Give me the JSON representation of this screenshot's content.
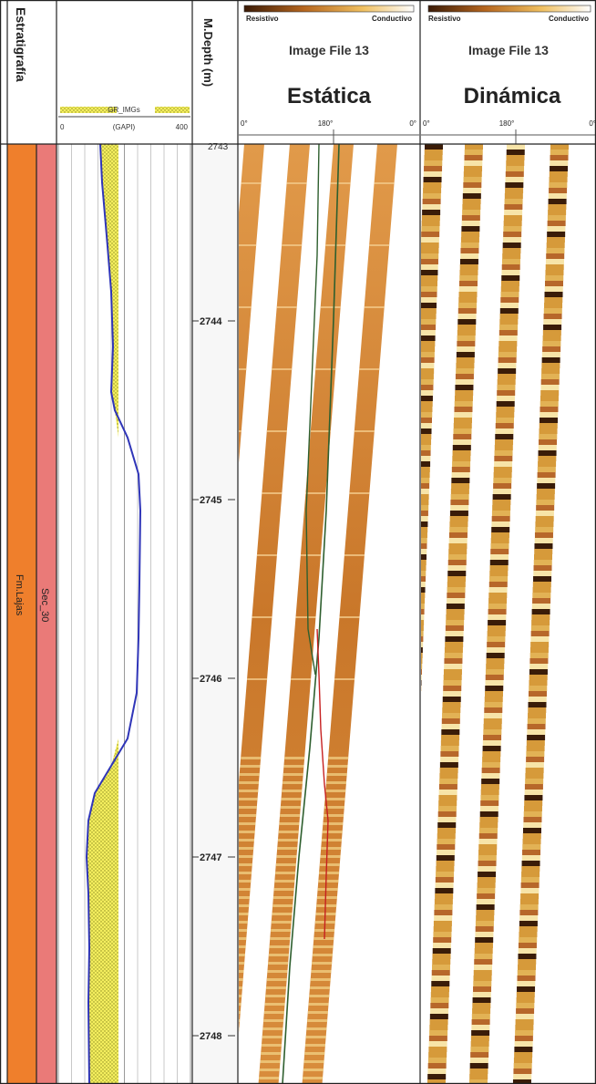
{
  "columns": {
    "stratigraphy": {
      "title": "Estratigrafía",
      "formation": "Fm.Lajas",
      "sequence": "Sec_30"
    },
    "gamma_ray": {
      "curve_name": "GR_IMGs",
      "unit": "(GAPI)",
      "scale_min": "0",
      "scale_max": "400"
    },
    "depth": {
      "title": "M.Depth (m)",
      "top_label": "2743",
      "labels": [
        "2744",
        "2745",
        "2746",
        "2747",
        "2748"
      ]
    },
    "static_image": {
      "color_bar_left": "Resistivo",
      "color_bar_right": "Conductivo",
      "file": "Image File 13",
      "title": "Estática",
      "scale": [
        "0°",
        "180°",
        "0°"
      ]
    },
    "dynamic_image": {
      "color_bar_left": "Resistivo",
      "color_bar_right": "Conductivo",
      "file": "Image File 13",
      "title": "Dinámica",
      "scale": [
        "0°",
        "180°",
        "0°"
      ]
    }
  },
  "colors": {
    "formation": "#ef7f2c",
    "sequence": "#ea7a78",
    "gr_curve": "#2f35b8",
    "gr_fill": "#f2ec5a",
    "static_pad": "#d98a35",
    "dynamic_pad": "#d4902e",
    "dip_dark": "#2e5f2e",
    "dip_red": "#c62020"
  }
}
